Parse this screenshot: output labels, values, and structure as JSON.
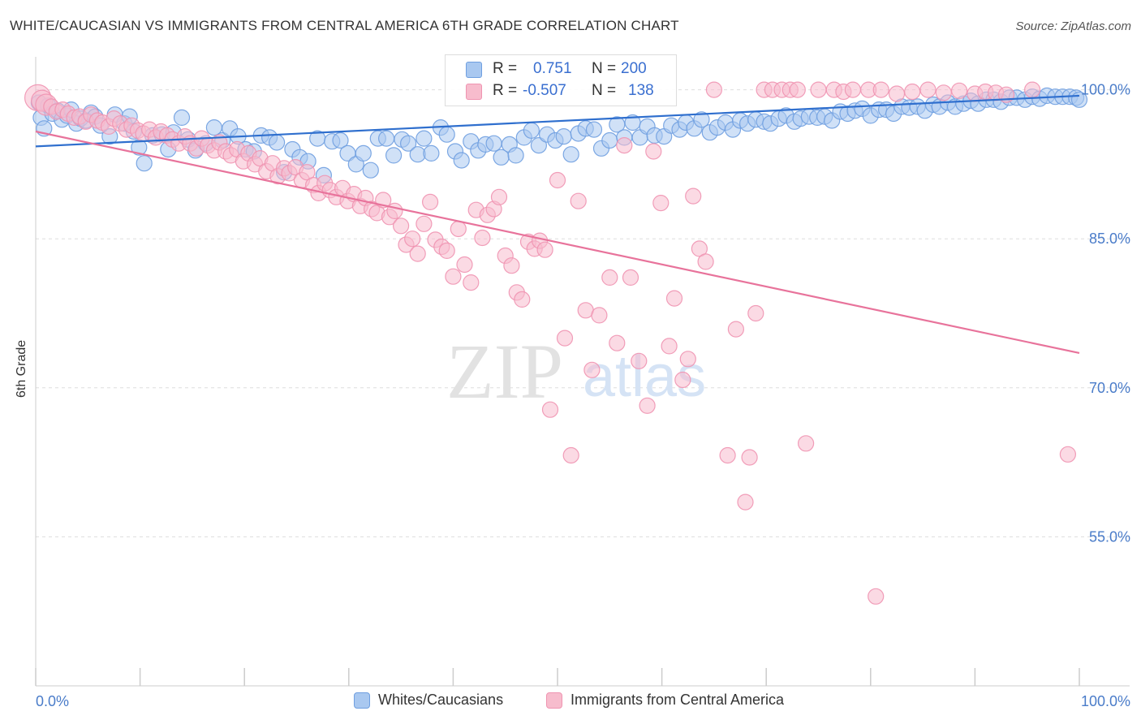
{
  "title": "WHITE/CAUCASIAN VS IMMIGRANTS FROM CENTRAL AMERICA 6TH GRADE CORRELATION CHART",
  "source": "Source: ZipAtlas.com",
  "watermark": {
    "zip": "ZIP",
    "atlas": "atlas"
  },
  "stats": {
    "r_label": "R =",
    "n_label": "N =",
    "whites": {
      "r": "0.751",
      "n": "200"
    },
    "immigrants": {
      "r": "-0.507",
      "n": "138"
    }
  },
  "legend": {
    "whites": "Whites/Caucasians",
    "immigrants": "Immigrants from Central America"
  },
  "colors": {
    "whites_fill": "#a9c8f0",
    "whites_stroke": "#6f9fe0",
    "whites_line": "#2f6fce",
    "immig_fill": "#f7bccd",
    "immig_stroke": "#ef94b1",
    "immig_line": "#e8739b",
    "tick_text": "#4a7cc9",
    "grid": "#dddddd"
  },
  "chart_data": {
    "type": "scatter",
    "xlabel": "",
    "ylabel": "6th Grade",
    "xlim": [
      0,
      100
    ],
    "ylim": [
      40,
      102.5
    ],
    "x_tick_labels": [
      "0.0%",
      "100.0%"
    ],
    "y_ticks": [
      {
        "value": 100,
        "label": "100.0%"
      },
      {
        "value": 85,
        "label": "85.0%"
      },
      {
        "value": 70,
        "label": "70.0%"
      },
      {
        "value": 55,
        "label": "55.0%"
      }
    ],
    "grid": true,
    "legend_position": "bottom",
    "series": [
      {
        "name": "Whites/Caucasians",
        "color": "#6f9fe0",
        "trend": {
          "x": [
            0,
            100
          ],
          "y": [
            94.3,
            99.4
          ]
        },
        "points": [
          [
            0.3,
            98.7
          ],
          [
            0.5,
            97.2
          ],
          [
            0.8,
            96.1
          ],
          [
            1.2,
            98.4
          ],
          [
            1.6,
            97.6
          ],
          [
            2.1,
            97.9
          ],
          [
            2.5,
            97.0
          ],
          [
            3.0,
            97.4
          ],
          [
            3.4,
            98.0
          ],
          [
            3.9,
            96.6
          ],
          [
            4.3,
            97.1
          ],
          [
            4.8,
            96.9
          ],
          [
            5.3,
            97.7
          ],
          [
            5.7,
            97.3
          ],
          [
            6.2,
            96.4
          ],
          [
            7.1,
            95.3
          ],
          [
            7.6,
            97.5
          ],
          [
            8.5,
            96.6
          ],
          [
            9.0,
            97.3
          ],
          [
            9.4,
            95.8
          ],
          [
            9.9,
            94.2
          ],
          [
            10.4,
            92.6
          ],
          [
            11.2,
            95.4
          ],
          [
            12.1,
            95.5
          ],
          [
            12.7,
            94.0
          ],
          [
            13.2,
            95.7
          ],
          [
            14.0,
            97.2
          ],
          [
            14.6,
            95.0
          ],
          [
            15.3,
            93.9
          ],
          [
            16.3,
            94.6
          ],
          [
            17.1,
            96.2
          ],
          [
            17.9,
            94.9
          ],
          [
            18.6,
            96.1
          ],
          [
            19.4,
            95.3
          ],
          [
            20.1,
            94.0
          ],
          [
            20.9,
            93.8
          ],
          [
            21.6,
            95.4
          ],
          [
            22.4,
            95.2
          ],
          [
            23.1,
            94.7
          ],
          [
            23.8,
            91.7
          ],
          [
            24.6,
            94.0
          ],
          [
            25.3,
            93.2
          ],
          [
            26.1,
            92.8
          ],
          [
            27.0,
            95.1
          ],
          [
            27.6,
            91.4
          ],
          [
            28.4,
            94.8
          ],
          [
            29.2,
            94.9
          ],
          [
            29.9,
            93.6
          ],
          [
            30.7,
            92.5
          ],
          [
            31.4,
            93.6
          ],
          [
            32.1,
            91.9
          ],
          [
            32.8,
            95.1
          ],
          [
            33.6,
            95.1
          ],
          [
            34.3,
            93.4
          ],
          [
            35.1,
            95.0
          ],
          [
            35.7,
            94.6
          ],
          [
            36.6,
            93.5
          ],
          [
            37.2,
            95.1
          ],
          [
            37.9,
            93.6
          ],
          [
            38.8,
            96.2
          ],
          [
            39.4,
            95.5
          ],
          [
            40.2,
            93.8
          ],
          [
            40.8,
            92.9
          ],
          [
            41.7,
            94.8
          ],
          [
            42.4,
            93.9
          ],
          [
            43.1,
            94.5
          ],
          [
            43.9,
            94.6
          ],
          [
            44.6,
            93.2
          ],
          [
            45.4,
            94.5
          ],
          [
            46.0,
            93.4
          ],
          [
            46.8,
            95.2
          ],
          [
            47.5,
            95.9
          ],
          [
            48.2,
            94.4
          ],
          [
            49.0,
            95.5
          ],
          [
            49.8,
            94.9
          ],
          [
            50.6,
            95.3
          ],
          [
            51.3,
            93.5
          ],
          [
            52.0,
            95.6
          ],
          [
            52.7,
            96.1
          ],
          [
            53.5,
            96.0
          ],
          [
            54.2,
            94.1
          ],
          [
            55.0,
            94.9
          ],
          [
            55.7,
            96.5
          ],
          [
            56.4,
            95.2
          ],
          [
            57.2,
            96.7
          ],
          [
            57.9,
            95.2
          ],
          [
            58.6,
            96.3
          ],
          [
            59.3,
            95.4
          ],
          [
            60.2,
            95.3
          ],
          [
            60.9,
            96.4
          ],
          [
            61.7,
            96.0
          ],
          [
            62.3,
            96.7
          ],
          [
            63.1,
            96.1
          ],
          [
            63.8,
            97.0
          ],
          [
            64.6,
            95.7
          ],
          [
            65.3,
            96.2
          ],
          [
            66.1,
            96.7
          ],
          [
            66.8,
            96.0
          ],
          [
            67.5,
            96.9
          ],
          [
            68.2,
            96.6
          ],
          [
            69.0,
            97.0
          ],
          [
            69.8,
            96.8
          ],
          [
            70.4,
            96.6
          ],
          [
            71.2,
            97.1
          ],
          [
            71.9,
            97.4
          ],
          [
            72.7,
            96.8
          ],
          [
            73.3,
            97.1
          ],
          [
            74.1,
            97.3
          ],
          [
            74.9,
            97.2
          ],
          [
            75.6,
            97.3
          ],
          [
            76.3,
            96.9
          ],
          [
            77.1,
            97.8
          ],
          [
            77.8,
            97.6
          ],
          [
            78.5,
            97.9
          ],
          [
            79.2,
            98.1
          ],
          [
            80.0,
            97.4
          ],
          [
            80.8,
            98.0
          ],
          [
            81.5,
            98.0
          ],
          [
            82.2,
            97.6
          ],
          [
            83.0,
            98.3
          ],
          [
            83.7,
            98.2
          ],
          [
            84.5,
            98.3
          ],
          [
            85.2,
            97.9
          ],
          [
            86.0,
            98.5
          ],
          [
            86.6,
            98.3
          ],
          [
            87.4,
            98.7
          ],
          [
            88.1,
            98.3
          ],
          [
            88.9,
            98.6
          ],
          [
            89.6,
            98.9
          ],
          [
            90.3,
            98.6
          ],
          [
            91.1,
            99.0
          ],
          [
            91.8,
            99.0
          ],
          [
            92.5,
            98.8
          ],
          [
            93.3,
            99.2
          ],
          [
            94.0,
            99.2
          ],
          [
            94.8,
            99.0
          ],
          [
            95.5,
            99.3
          ],
          [
            96.2,
            99.1
          ],
          [
            96.9,
            99.4
          ],
          [
            97.7,
            99.3
          ],
          [
            98.4,
            99.3
          ],
          [
            99.1,
            99.3
          ],
          [
            99.7,
            99.2
          ],
          [
            100.0,
            99.0
          ]
        ]
      },
      {
        "name": "Immigrants from Central America",
        "color": "#ef94b1",
        "trend": {
          "x": [
            0,
            100
          ],
          "y": [
            95.8,
            73.5
          ]
        },
        "points": [
          [
            0.2,
            99.2
          ],
          [
            0.6,
            98.9
          ],
          [
            1.0,
            98.5
          ],
          [
            1.5,
            98.3
          ],
          [
            2.0,
            97.8
          ],
          [
            2.6,
            98.0
          ],
          [
            3.1,
            97.6
          ],
          [
            3.7,
            97.2
          ],
          [
            4.2,
            97.3
          ],
          [
            4.8,
            96.8
          ],
          [
            5.3,
            97.5
          ],
          [
            5.9,
            96.9
          ],
          [
            6.4,
            96.7
          ],
          [
            7.0,
            96.3
          ],
          [
            7.5,
            97.1
          ],
          [
            8.1,
            96.6
          ],
          [
            8.7,
            96.0
          ],
          [
            9.2,
            96.4
          ],
          [
            9.8,
            95.9
          ],
          [
            10.3,
            95.6
          ],
          [
            10.9,
            96.0
          ],
          [
            11.5,
            95.2
          ],
          [
            12.0,
            95.8
          ],
          [
            12.6,
            95.4
          ],
          [
            13.1,
            95.0
          ],
          [
            13.7,
            94.6
          ],
          [
            14.3,
            95.3
          ],
          [
            14.8,
            94.6
          ],
          [
            15.4,
            94.1
          ],
          [
            15.9,
            95.1
          ],
          [
            16.5,
            94.4
          ],
          [
            17.1,
            93.9
          ],
          [
            17.6,
            94.7
          ],
          [
            18.2,
            93.8
          ],
          [
            18.7,
            93.4
          ],
          [
            19.3,
            94.0
          ],
          [
            19.9,
            92.8
          ],
          [
            20.4,
            93.6
          ],
          [
            21.0,
            92.5
          ],
          [
            21.5,
            93.1
          ],
          [
            22.1,
            91.8
          ],
          [
            22.7,
            92.6
          ],
          [
            23.2,
            91.3
          ],
          [
            23.8,
            92.1
          ],
          [
            24.3,
            91.6
          ],
          [
            24.9,
            92.2
          ],
          [
            25.5,
            90.9
          ],
          [
            26.0,
            91.7
          ],
          [
            26.6,
            90.4
          ],
          [
            27.1,
            89.6
          ],
          [
            27.7,
            90.6
          ],
          [
            28.2,
            89.9
          ],
          [
            28.8,
            89.2
          ],
          [
            29.4,
            90.1
          ],
          [
            29.9,
            88.8
          ],
          [
            30.5,
            89.5
          ],
          [
            31.1,
            88.3
          ],
          [
            31.6,
            89.1
          ],
          [
            32.2,
            88.0
          ],
          [
            32.7,
            87.6
          ],
          [
            33.3,
            88.9
          ],
          [
            33.9,
            87.2
          ],
          [
            34.4,
            87.8
          ],
          [
            35.0,
            86.3
          ],
          [
            35.5,
            84.4
          ],
          [
            36.1,
            85.0
          ],
          [
            36.6,
            83.5
          ],
          [
            37.2,
            86.5
          ],
          [
            37.8,
            88.7
          ],
          [
            38.3,
            84.9
          ],
          [
            38.9,
            84.2
          ],
          [
            39.4,
            83.8
          ],
          [
            40.0,
            81.2
          ],
          [
            40.5,
            86.0
          ],
          [
            41.1,
            82.4
          ],
          [
            41.7,
            80.6
          ],
          [
            42.2,
            87.9
          ],
          [
            42.8,
            85.1
          ],
          [
            43.3,
            87.4
          ],
          [
            43.9,
            88.0
          ],
          [
            44.4,
            89.2
          ],
          [
            45.0,
            83.3
          ],
          [
            45.6,
            82.3
          ],
          [
            46.1,
            79.6
          ],
          [
            46.6,
            78.9
          ],
          [
            47.2,
            84.7
          ],
          [
            47.8,
            84.0
          ],
          [
            48.3,
            84.8
          ],
          [
            48.8,
            83.9
          ],
          [
            49.3,
            67.8
          ],
          [
            50.0,
            90.9
          ],
          [
            50.7,
            75.0
          ],
          [
            51.3,
            63.2
          ],
          [
            52.0,
            88.8
          ],
          [
            52.7,
            77.8
          ],
          [
            53.3,
            71.8
          ],
          [
            54.0,
            77.3
          ],
          [
            55.0,
            81.1
          ],
          [
            55.7,
            74.5
          ],
          [
            56.4,
            94.4
          ],
          [
            57.0,
            81.1
          ],
          [
            57.8,
            72.7
          ],
          [
            58.6,
            68.2
          ],
          [
            59.2,
            93.8
          ],
          [
            59.9,
            88.6
          ],
          [
            60.7,
            74.2
          ],
          [
            61.2,
            79.0
          ],
          [
            62.0,
            70.8
          ],
          [
            62.5,
            72.9
          ],
          [
            63.0,
            89.3
          ],
          [
            63.6,
            84.0
          ],
          [
            64.2,
            82.7
          ],
          [
            65.0,
            100.0
          ],
          [
            66.3,
            63.2
          ],
          [
            67.1,
            75.9
          ],
          [
            68.0,
            58.5
          ],
          [
            68.4,
            63.0
          ],
          [
            69.0,
            77.5
          ],
          [
            69.8,
            100.0
          ],
          [
            70.6,
            100.0
          ],
          [
            71.5,
            100.0
          ],
          [
            72.3,
            100.0
          ],
          [
            73.0,
            100.0
          ],
          [
            73.8,
            64.4
          ],
          [
            75.0,
            100.0
          ],
          [
            76.5,
            100.0
          ],
          [
            77.4,
            99.8
          ],
          [
            78.3,
            100.0
          ],
          [
            79.8,
            100.0
          ],
          [
            80.5,
            49.0
          ],
          [
            81.0,
            100.0
          ],
          [
            82.5,
            99.6
          ],
          [
            84.0,
            99.8
          ],
          [
            85.5,
            100.0
          ],
          [
            87.0,
            99.7
          ],
          [
            88.5,
            99.9
          ],
          [
            90.0,
            99.6
          ],
          [
            91.0,
            99.8
          ],
          [
            92.0,
            99.7
          ],
          [
            93.0,
            99.5
          ],
          [
            95.5,
            100.0
          ],
          [
            98.9,
            63.3
          ]
        ]
      }
    ]
  }
}
